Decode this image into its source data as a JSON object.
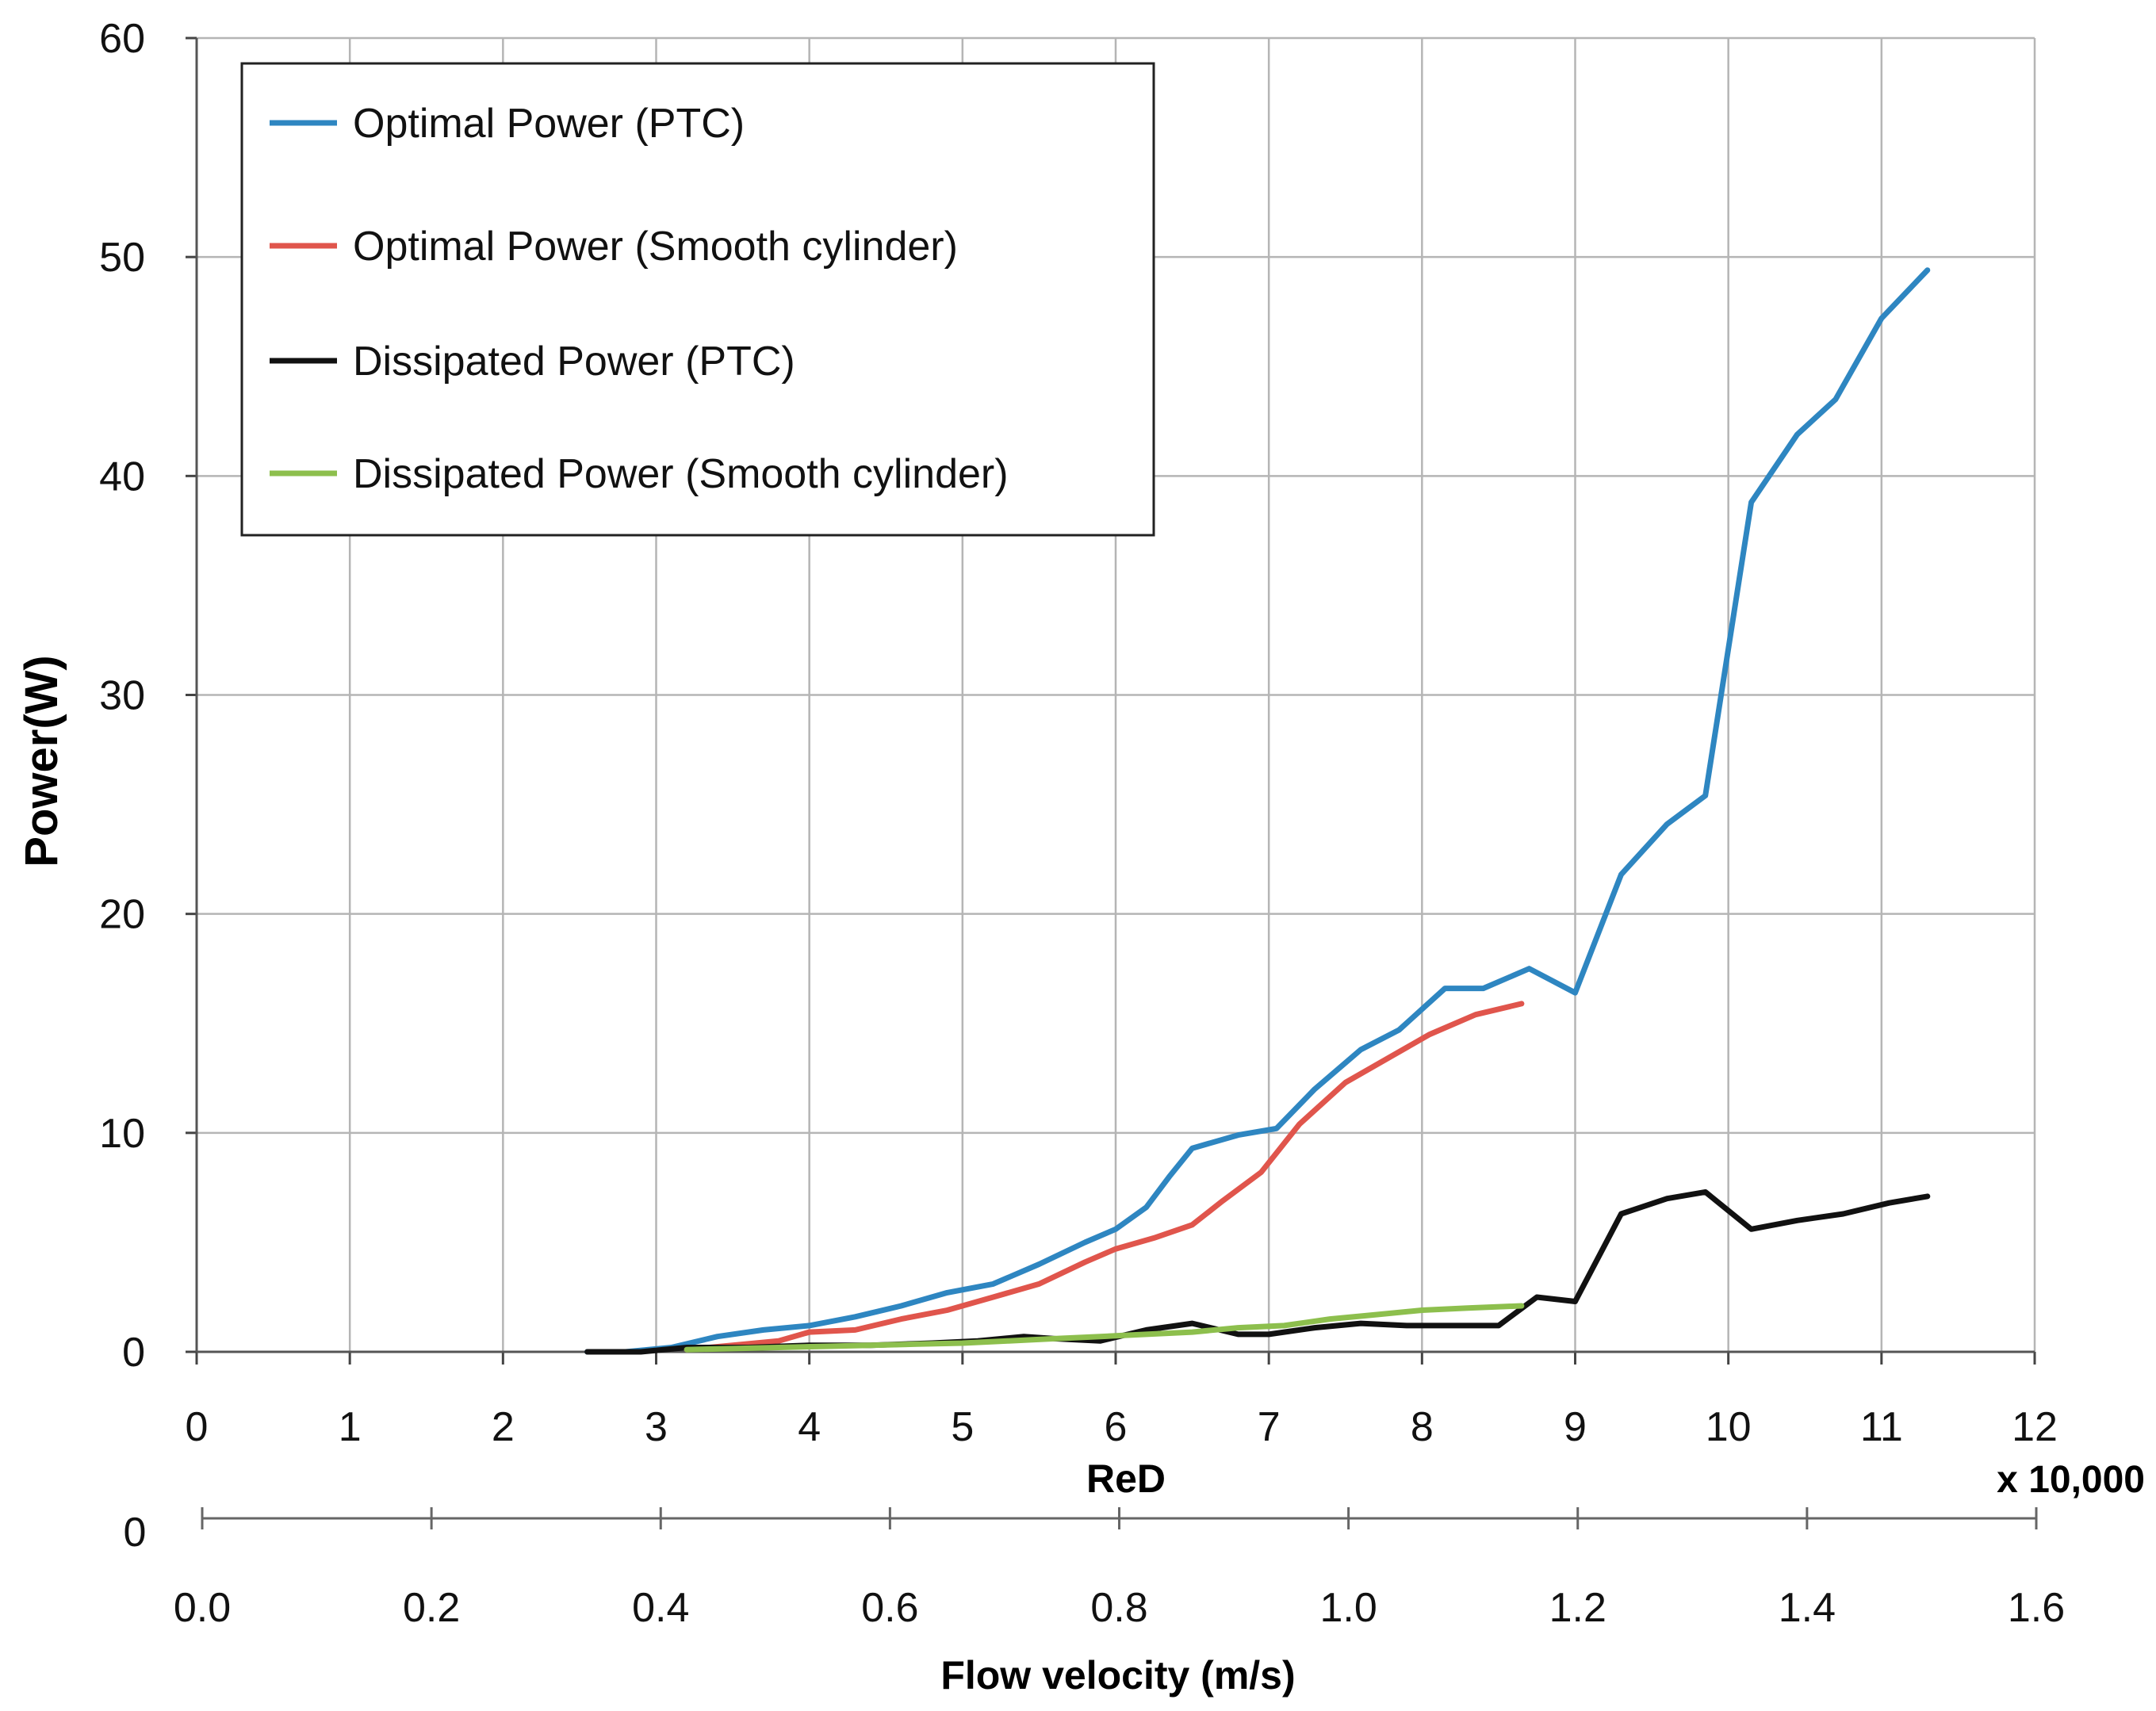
{
  "chart_data": {
    "type": "line",
    "title": "",
    "xlabel": "ReD",
    "x_multiplier_label": "x 10,000",
    "ylabel": "Power(W)",
    "xlim": [
      0,
      12
    ],
    "ylim": [
      0,
      60
    ],
    "x_ticks": [
      "0",
      "1",
      "2",
      "3",
      "4",
      "5",
      "6",
      "7",
      "8",
      "9",
      "10",
      "11",
      "12"
    ],
    "y_ticks": [
      "0",
      "10",
      "20",
      "30",
      "40",
      "50",
      "60"
    ],
    "grid": true,
    "legend_position": "top-left",
    "secondary_x_axis": {
      "label": "Flow velocity (m/s)",
      "range": [
        0.0,
        1.6
      ],
      "ticks": [
        "0.0",
        "0.2",
        "0.4",
        "0.6",
        "0.8",
        "1.0",
        "1.2",
        "1.4",
        "1.6"
      ],
      "stray_label": "0"
    },
    "series": [
      {
        "name": "Optimal Power (PTC)",
        "color": "#2E86C1",
        "x": [
          2.55,
          2.8,
          3.1,
          3.4,
          3.7,
          4.0,
          4.3,
          4.6,
          4.9,
          5.2,
          5.5,
          5.8,
          6.0,
          6.2,
          6.35,
          6.5,
          6.8,
          7.05,
          7.3,
          7.6,
          7.85,
          8.15,
          8.4,
          8.7,
          9.0,
          9.3,
          9.6,
          9.85,
          10.15,
          10.45,
          10.7,
          11.0,
          11.3
        ],
        "y": [
          0.0,
          0.0,
          0.2,
          0.7,
          1.0,
          1.2,
          1.6,
          2.1,
          2.7,
          3.1,
          4.0,
          5.0,
          5.6,
          6.6,
          8.0,
          9.3,
          9.9,
          10.2,
          12.0,
          13.8,
          14.7,
          16.6,
          16.6,
          17.5,
          16.4,
          21.8,
          24.1,
          25.4,
          38.8,
          41.9,
          43.5,
          47.2,
          49.4
        ]
      },
      {
        "name": "Optimal Power (Smooth cylinder)",
        "color": "#E0554C",
        "x": [
          3.2,
          3.5,
          3.8,
          4.0,
          4.3,
          4.6,
          4.9,
          5.2,
          5.5,
          5.8,
          6.0,
          6.25,
          6.5,
          6.7,
          6.95,
          7.2,
          7.5,
          7.8,
          8.05,
          8.35,
          8.65
        ],
        "y": [
          0.1,
          0.3,
          0.5,
          0.9,
          1.0,
          1.5,
          1.9,
          2.5,
          3.1,
          4.1,
          4.7,
          5.2,
          5.8,
          6.9,
          8.2,
          10.4,
          12.3,
          13.5,
          14.5,
          15.4,
          15.9
        ]
      },
      {
        "name": "Dissipated Power (PTC)",
        "color": "#111111",
        "x": [
          2.55,
          2.9,
          3.2,
          3.6,
          4.0,
          4.4,
          4.8,
          5.1,
          5.4,
          5.6,
          5.9,
          6.2,
          6.5,
          6.8,
          7.0,
          7.3,
          7.6,
          7.9,
          8.2,
          8.5,
          8.75,
          9.0,
          9.3,
          9.6,
          9.85,
          10.15,
          10.45,
          10.75,
          11.05,
          11.3
        ],
        "y": [
          0.0,
          0.0,
          0.2,
          0.2,
          0.3,
          0.3,
          0.4,
          0.5,
          0.7,
          0.6,
          0.5,
          1.0,
          1.3,
          0.8,
          0.8,
          1.1,
          1.3,
          1.2,
          1.2,
          1.2,
          2.5,
          2.3,
          6.3,
          7.0,
          7.3,
          5.6,
          6.0,
          6.3,
          6.8,
          7.1
        ]
      },
      {
        "name": "Dissipated Power (Smooth cylinder)",
        "color": "#8DBF4D",
        "x": [
          3.2,
          3.5,
          3.8,
          4.1,
          4.4,
          4.7,
          5.0,
          5.3,
          5.6,
          5.9,
          6.2,
          6.5,
          6.8,
          7.1,
          7.4,
          7.7,
          8.0,
          8.3,
          8.65
        ],
        "y": [
          0.1,
          0.15,
          0.2,
          0.25,
          0.3,
          0.35,
          0.4,
          0.5,
          0.6,
          0.7,
          0.8,
          0.9,
          1.1,
          1.2,
          1.5,
          1.7,
          1.9,
          2.0,
          2.1
        ]
      }
    ]
  }
}
